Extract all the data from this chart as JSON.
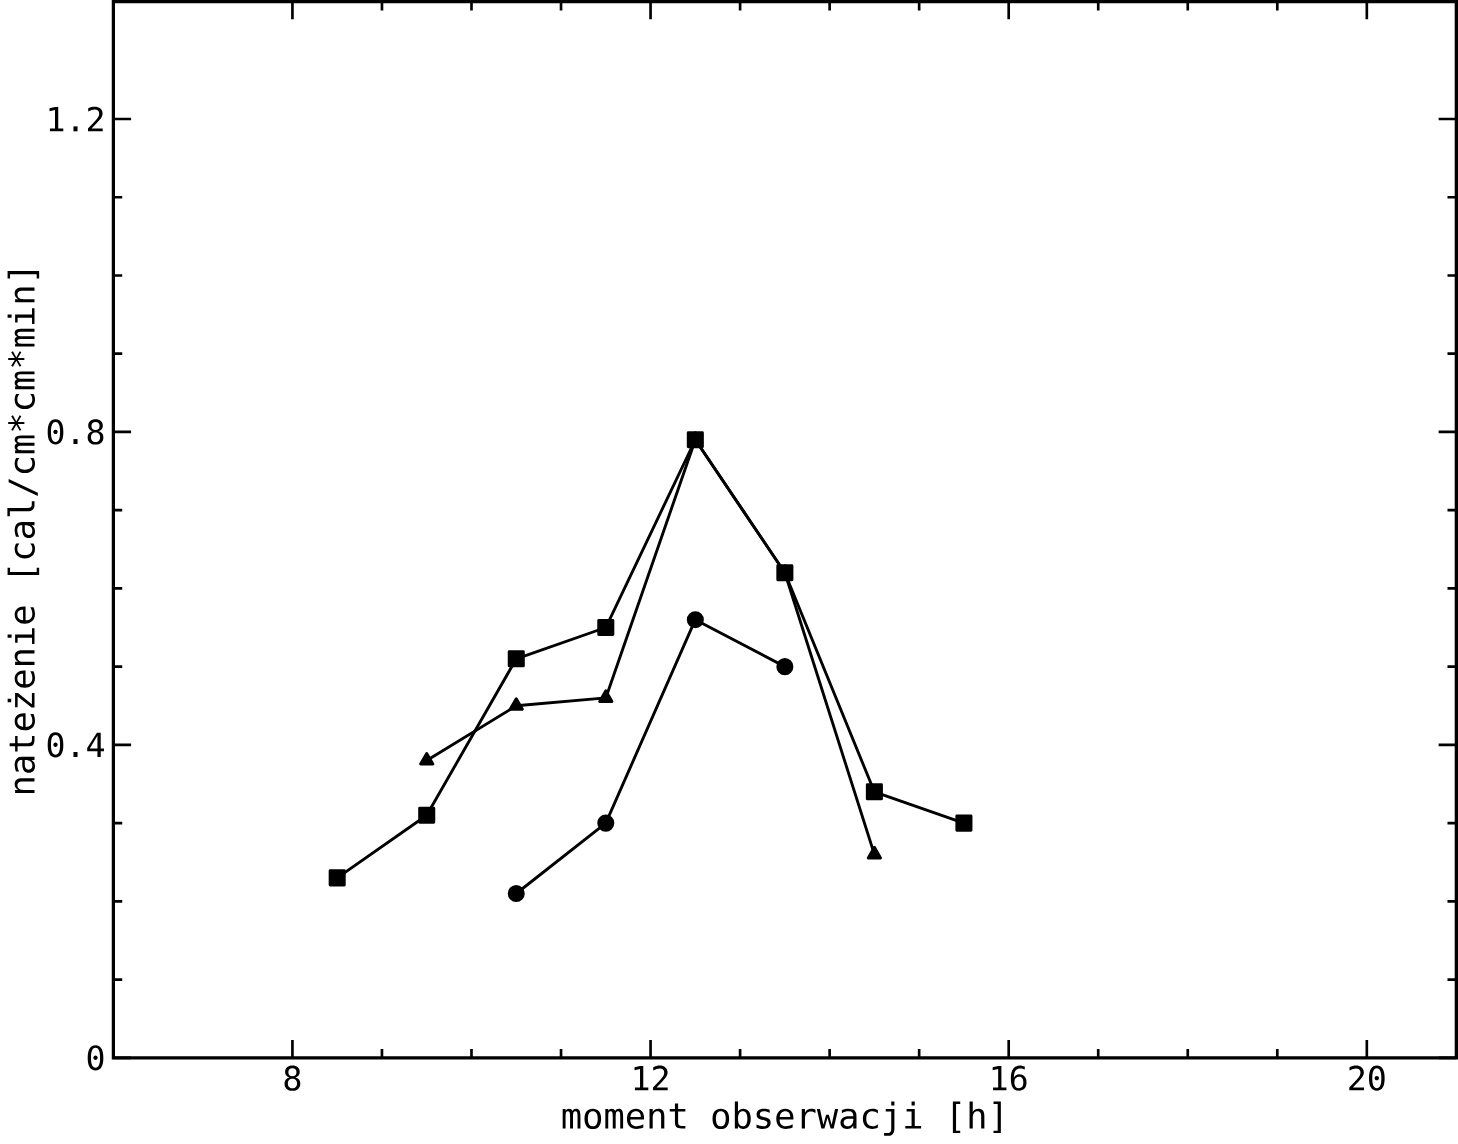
{
  "chart_data": {
    "type": "line",
    "xlabel": "moment obserwacji [h]",
    "ylabel": "nateżenie [cal/cm*cm*min]",
    "xlim": [
      6,
      21
    ],
    "xticks": [
      8,
      12,
      16,
      20
    ],
    "ylim": [
      0,
      1.35
    ],
    "yticks": [
      0,
      0.4,
      0.8,
      1.2
    ],
    "grid": false,
    "series": [
      {
        "color": "#000000",
        "marker": "square",
        "x": [
          8.5,
          9.5,
          10.5,
          11.5,
          12.5,
          13.5,
          14.5,
          15.5
        ],
        "values": [
          0.23,
          0.31,
          0.51,
          0.55,
          0.79,
          0.62,
          0.34,
          0.3
        ]
      },
      {
        "color": "#000000",
        "marker": "triangle",
        "x": [
          9.5,
          10.5,
          11.5,
          12.5,
          13.5,
          14.5
        ],
        "values": [
          0.38,
          0.45,
          0.46,
          0.79,
          0.62,
          0.26
        ]
      },
      {
        "color": "#000000",
        "marker": "circle",
        "x": [
          10.5,
          11.5,
          12.5,
          13.5
        ],
        "values": [
          0.21,
          0.3,
          0.56,
          0.5
        ]
      }
    ]
  }
}
